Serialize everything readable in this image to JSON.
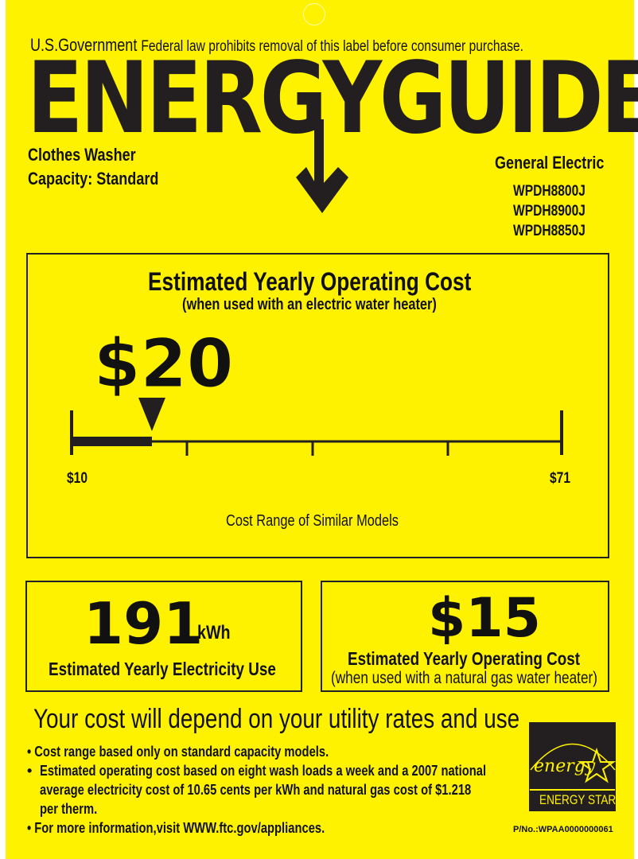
{
  "header": {
    "gov": "U.S.Government",
    "notice": "Federal law prohibits removal of this label before consumer purchase.",
    "title": "ENERGYGUIDE"
  },
  "product": {
    "type": "Clothes Washer",
    "capacity": "Capacity: Standard",
    "brand": "General Electric",
    "models": [
      "WPDH8800J",
      "WPDH8900J",
      "WPDH8850J"
    ]
  },
  "cost": {
    "title": "Estimated Yearly Operating Cost",
    "subtitle": "(when used with an electric water heater)",
    "value": "$20",
    "value_num": 20,
    "range_min": 10,
    "range_max": 71,
    "min_label": "$10",
    "max_label": "$71",
    "range_caption": "Cost Range of Similar Models"
  },
  "electricity": {
    "value": "191",
    "unit": "kWh",
    "label": "Estimated Yearly Electricity Use"
  },
  "gas": {
    "value": "$15",
    "label": "Estimated Yearly Operating Cost",
    "sublabel": "(when used with a natural gas water heater)"
  },
  "footer": {
    "headline": "Your cost will depend on your utility rates and use",
    "bullets": [
      "Cost range based only on standard capacity models.",
      "Estimated operating cost based on eight wash loads a week and a 2007 national average electricity cost of 10.65 cents per kWh and natural gas cost of $1.218 per therm.",
      "For more information,visit WWW.ftc.gov/appliances."
    ],
    "part_no": "P/No.:WPAA0000000061"
  },
  "energy_star": {
    "script": "energy",
    "label": "ENERGY STAR"
  },
  "colors": {
    "background": "#fff200",
    "ink": "#1a1a1a"
  }
}
